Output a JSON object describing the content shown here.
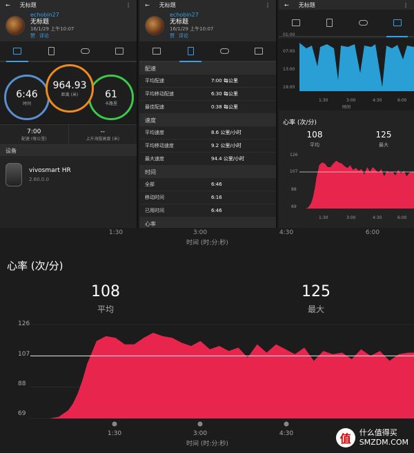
{
  "app": {
    "title": "无标题",
    "user": "echobin27",
    "activity_name": "无标题",
    "date": "16/1/29 上午10:07",
    "like": "赞",
    "comment": "评论"
  },
  "summary": {
    "time": {
      "value": "6:46",
      "label": "时间"
    },
    "distance": {
      "value": "964.93",
      "label": "距离 (米)"
    },
    "calories": {
      "value": "61",
      "label": "卡路里"
    },
    "pace": {
      "value": "7:00",
      "label": "配速 (每公里)"
    },
    "elevation": {
      "value": "--",
      "label": "上升海拔高度 (米)"
    }
  },
  "device": {
    "section": "设备",
    "name": "vivosmart HR",
    "version": "2.60.0.0"
  },
  "details": {
    "sections": [
      {
        "title": "配速",
        "rows": [
          {
            "k": "平均配速",
            "v": "7:00 每公里"
          },
          {
            "k": "平均移动配速",
            "v": "6:30 每公里"
          },
          {
            "k": "最佳配速",
            "v": "0:38 每公里"
          }
        ]
      },
      {
        "title": "速度",
        "rows": [
          {
            "k": "平均速度",
            "v": "8.6 公里/小时"
          },
          {
            "k": "平均移动速度",
            "v": "9.2 公里/小时"
          },
          {
            "k": "最大速度",
            "v": "94.4 公里/小时"
          }
        ]
      },
      {
        "title": "时间",
        "rows": [
          {
            "k": "全部",
            "v": "6:46"
          },
          {
            "k": "移动时间",
            "v": "6:16"
          },
          {
            "k": "已用时间",
            "v": "6:46"
          }
        ]
      },
      {
        "title": "心率",
        "rows": []
      }
    ]
  },
  "pace_chart": {
    "y_ticks": [
      "01:00",
      "07:00",
      "13:00",
      "19:00"
    ],
    "x_ticks": [
      "1:30",
      "3:00",
      "4:30",
      "6:00"
    ],
    "xlabel": "时间"
  },
  "hr_small": {
    "title": "心率 (次/分)",
    "avg": "108",
    "avg_label": "平均",
    "max": "125",
    "max_label": "最大",
    "y_ticks": [
      "126",
      "107",
      "88",
      "69"
    ],
    "x_ticks": [
      "1:30",
      "3:00",
      "4:30",
      "6:00"
    ]
  },
  "chart_data": {
    "type": "area",
    "title": "心率 (次/分)",
    "xlabel": "时间 (时:分:秒)",
    "ylabel": "",
    "ylim": [
      69,
      126
    ],
    "y_ticks": [
      126,
      107,
      88,
      69
    ],
    "x_ticks": [
      "1:30",
      "3:00",
      "4:30"
    ],
    "reference_line": 107,
    "x": [
      0,
      10,
      20,
      30,
      40,
      45,
      50,
      55,
      60,
      70,
      80,
      90,
      100,
      110,
      120,
      130,
      140,
      150,
      160,
      170,
      180,
      190,
      200,
      210,
      220,
      230,
      240,
      250,
      260,
      270,
      280,
      290,
      300,
      310,
      320,
      330,
      340,
      350,
      360,
      370,
      380,
      390,
      400,
      406
    ],
    "values": [
      69,
      69,
      69,
      70,
      74,
      78,
      84,
      92,
      102,
      116,
      119,
      118,
      114,
      114,
      118,
      121,
      119,
      118,
      115,
      113,
      116,
      111,
      113,
      110,
      112,
      106,
      114,
      109,
      114,
      111,
      108,
      112,
      104,
      110,
      108,
      109,
      105,
      111,
      107,
      110,
      104,
      108,
      109,
      109
    ]
  },
  "big": {
    "title": "心率 (次/分)",
    "avg": "108",
    "avg_label": "平均",
    "max": "125",
    "max_label": "最大",
    "y_ticks": [
      "126",
      "107",
      "88",
      "69"
    ],
    "x_ticks": [
      "1:30",
      "3:00",
      "4:30"
    ],
    "top_ticks": [
      "1:30",
      "3:00",
      "4:30",
      "6:00"
    ],
    "xlabel": "时间 (时:分:秒)"
  },
  "watermark": {
    "badge": "值",
    "line1": "什么值得买",
    "line2": "SMZDM.COM"
  },
  "colors": {
    "accent": "#3aa0e8",
    "hr": "#e8254d",
    "pace": "#2a9fd6",
    "time_ring": "#5a8fd0",
    "distance_ring": "#f08a1e",
    "calorie_ring": "#3cc84a"
  }
}
